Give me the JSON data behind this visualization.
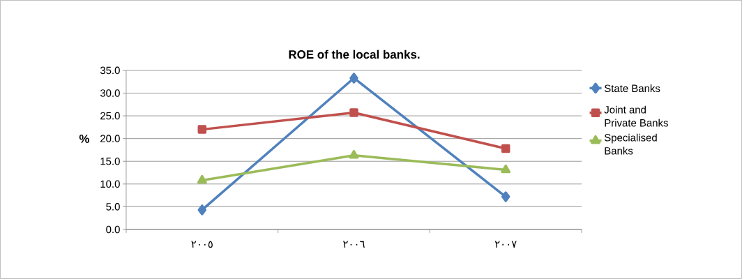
{
  "chart_data": {
    "type": "line",
    "title": "ROE of the local banks.",
    "ylabel": "%",
    "categories": [
      "٢٠٠٥",
      "٢٠٠٦",
      "٢٠٠٧"
    ],
    "series": [
      {
        "name": "State Banks",
        "color": "#4f81bd",
        "marker": "diamond",
        "values": [
          4.3,
          33.3,
          7.2
        ]
      },
      {
        "name": "Joint and Private Banks",
        "color": "#c0504d",
        "marker": "square",
        "values": [
          22.0,
          25.7,
          17.8
        ]
      },
      {
        "name": "Specialised Banks",
        "color": "#9bbb59",
        "marker": "triangle",
        "values": [
          10.8,
          16.3,
          13.1
        ]
      }
    ],
    "ylim": [
      0,
      35
    ],
    "yticks": [
      {
        "value": 0,
        "label": "0.0"
      },
      {
        "value": 5,
        "label": "5.0"
      },
      {
        "value": 10,
        "label": "10.0"
      },
      {
        "value": 15,
        "label": "15.0"
      },
      {
        "value": 20,
        "label": "20.0"
      },
      {
        "value": 25,
        "label": "25.0"
      },
      {
        "value": 30,
        "label": "30.0"
      },
      {
        "value": 35,
        "label": "35.0"
      }
    ],
    "grid": "y",
    "legend": "right",
    "line_style": "solid"
  }
}
